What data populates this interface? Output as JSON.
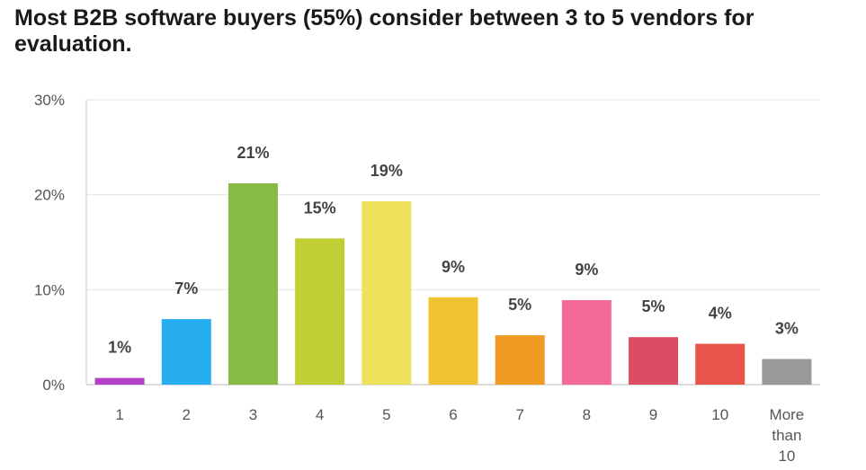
{
  "title": "Most B2B software buyers (55%) consider between 3 to 5 vendors for evaluation.",
  "chart_data": {
    "type": "bar",
    "title": "Most B2B software buyers (55%) consider between 3 to 5 vendors for evaluation.",
    "xlabel": "",
    "ylabel": "",
    "ylim": [
      0,
      30
    ],
    "yticks": [
      "0%",
      "10%",
      "20%",
      "30%"
    ],
    "ytick_values": [
      0,
      10,
      20,
      30
    ],
    "grid": true,
    "categories": [
      "1",
      "2",
      "3",
      "4",
      "5",
      "6",
      "7",
      "8",
      "9",
      "10",
      "More than 10"
    ],
    "category_lines": [
      [
        "1"
      ],
      [
        "2"
      ],
      [
        "3"
      ],
      [
        "4"
      ],
      [
        "5"
      ],
      [
        "6"
      ],
      [
        "7"
      ],
      [
        "8"
      ],
      [
        "9"
      ],
      [
        "10"
      ],
      [
        "More",
        "than",
        "10"
      ]
    ],
    "values": [
      0.7,
      6.9,
      21.2,
      15.4,
      19.3,
      9.2,
      5.2,
      8.9,
      5.0,
      4.3,
      2.7
    ],
    "labels": [
      "1%",
      "7%",
      "21%",
      "15%",
      "19%",
      "9%",
      "5%",
      "9%",
      "5%",
      "4%",
      "3%"
    ],
    "colors": [
      "#b442c8",
      "#26aef0",
      "#86bb45",
      "#c1cf35",
      "#ede25a",
      "#f0c232",
      "#ef9a22",
      "#f4699a",
      "#dd4c62",
      "#e9544a",
      "#999999"
    ]
  }
}
